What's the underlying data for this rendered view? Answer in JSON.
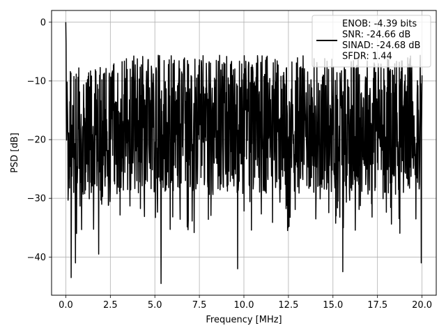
{
  "chart_data": {
    "type": "line",
    "title": "",
    "xlabel": "Frequency [MHz]",
    "ylabel": "PSD [dB]",
    "xlim": [
      -0.8,
      20.8
    ],
    "ylim": [
      -46.5,
      2.0
    ],
    "x_ticks": [
      0.0,
      2.5,
      5.0,
      7.5,
      10.0,
      12.5,
      15.0,
      17.5,
      20.0
    ],
    "x_tick_labels": [
      "0.0",
      "2.5",
      "5.0",
      "7.5",
      "10.0",
      "12.5",
      "15.0",
      "17.5",
      "20.0"
    ],
    "y_ticks": [
      0,
      -10,
      -20,
      -30,
      -40
    ],
    "y_tick_labels": [
      "0",
      "−10",
      "−20",
      "−30",
      "−40"
    ],
    "grid": true,
    "legend_position": "top-right",
    "legend_entries": [
      "ENOB: -4.39 bits\nSNR: -24.66 dB\nSINAD: -24.68 dB\nSFDR: 1.44"
    ],
    "series": [
      {
        "name": "ENOB: -4.39 bits\nSNR: -24.66 dB\nSINAD: -24.68 dB\nSFDR: 1.44",
        "color": "#000000",
        "x_range": [
          0.0,
          20.0
        ],
        "y_peak": 0.0,
        "y_typical_range": [
          -30,
          -5
        ],
        "notable_minima": [
          {
            "x": 0.3,
            "y": -43.5
          },
          {
            "x": 0.55,
            "y": -41.0
          },
          {
            "x": 1.85,
            "y": -39.5
          },
          {
            "x": 5.35,
            "y": -44.5
          },
          {
            "x": 9.65,
            "y": -42.0
          },
          {
            "x": 15.55,
            "y": -42.5
          },
          {
            "x": 19.95,
            "y": -41.0
          }
        ]
      }
    ]
  }
}
